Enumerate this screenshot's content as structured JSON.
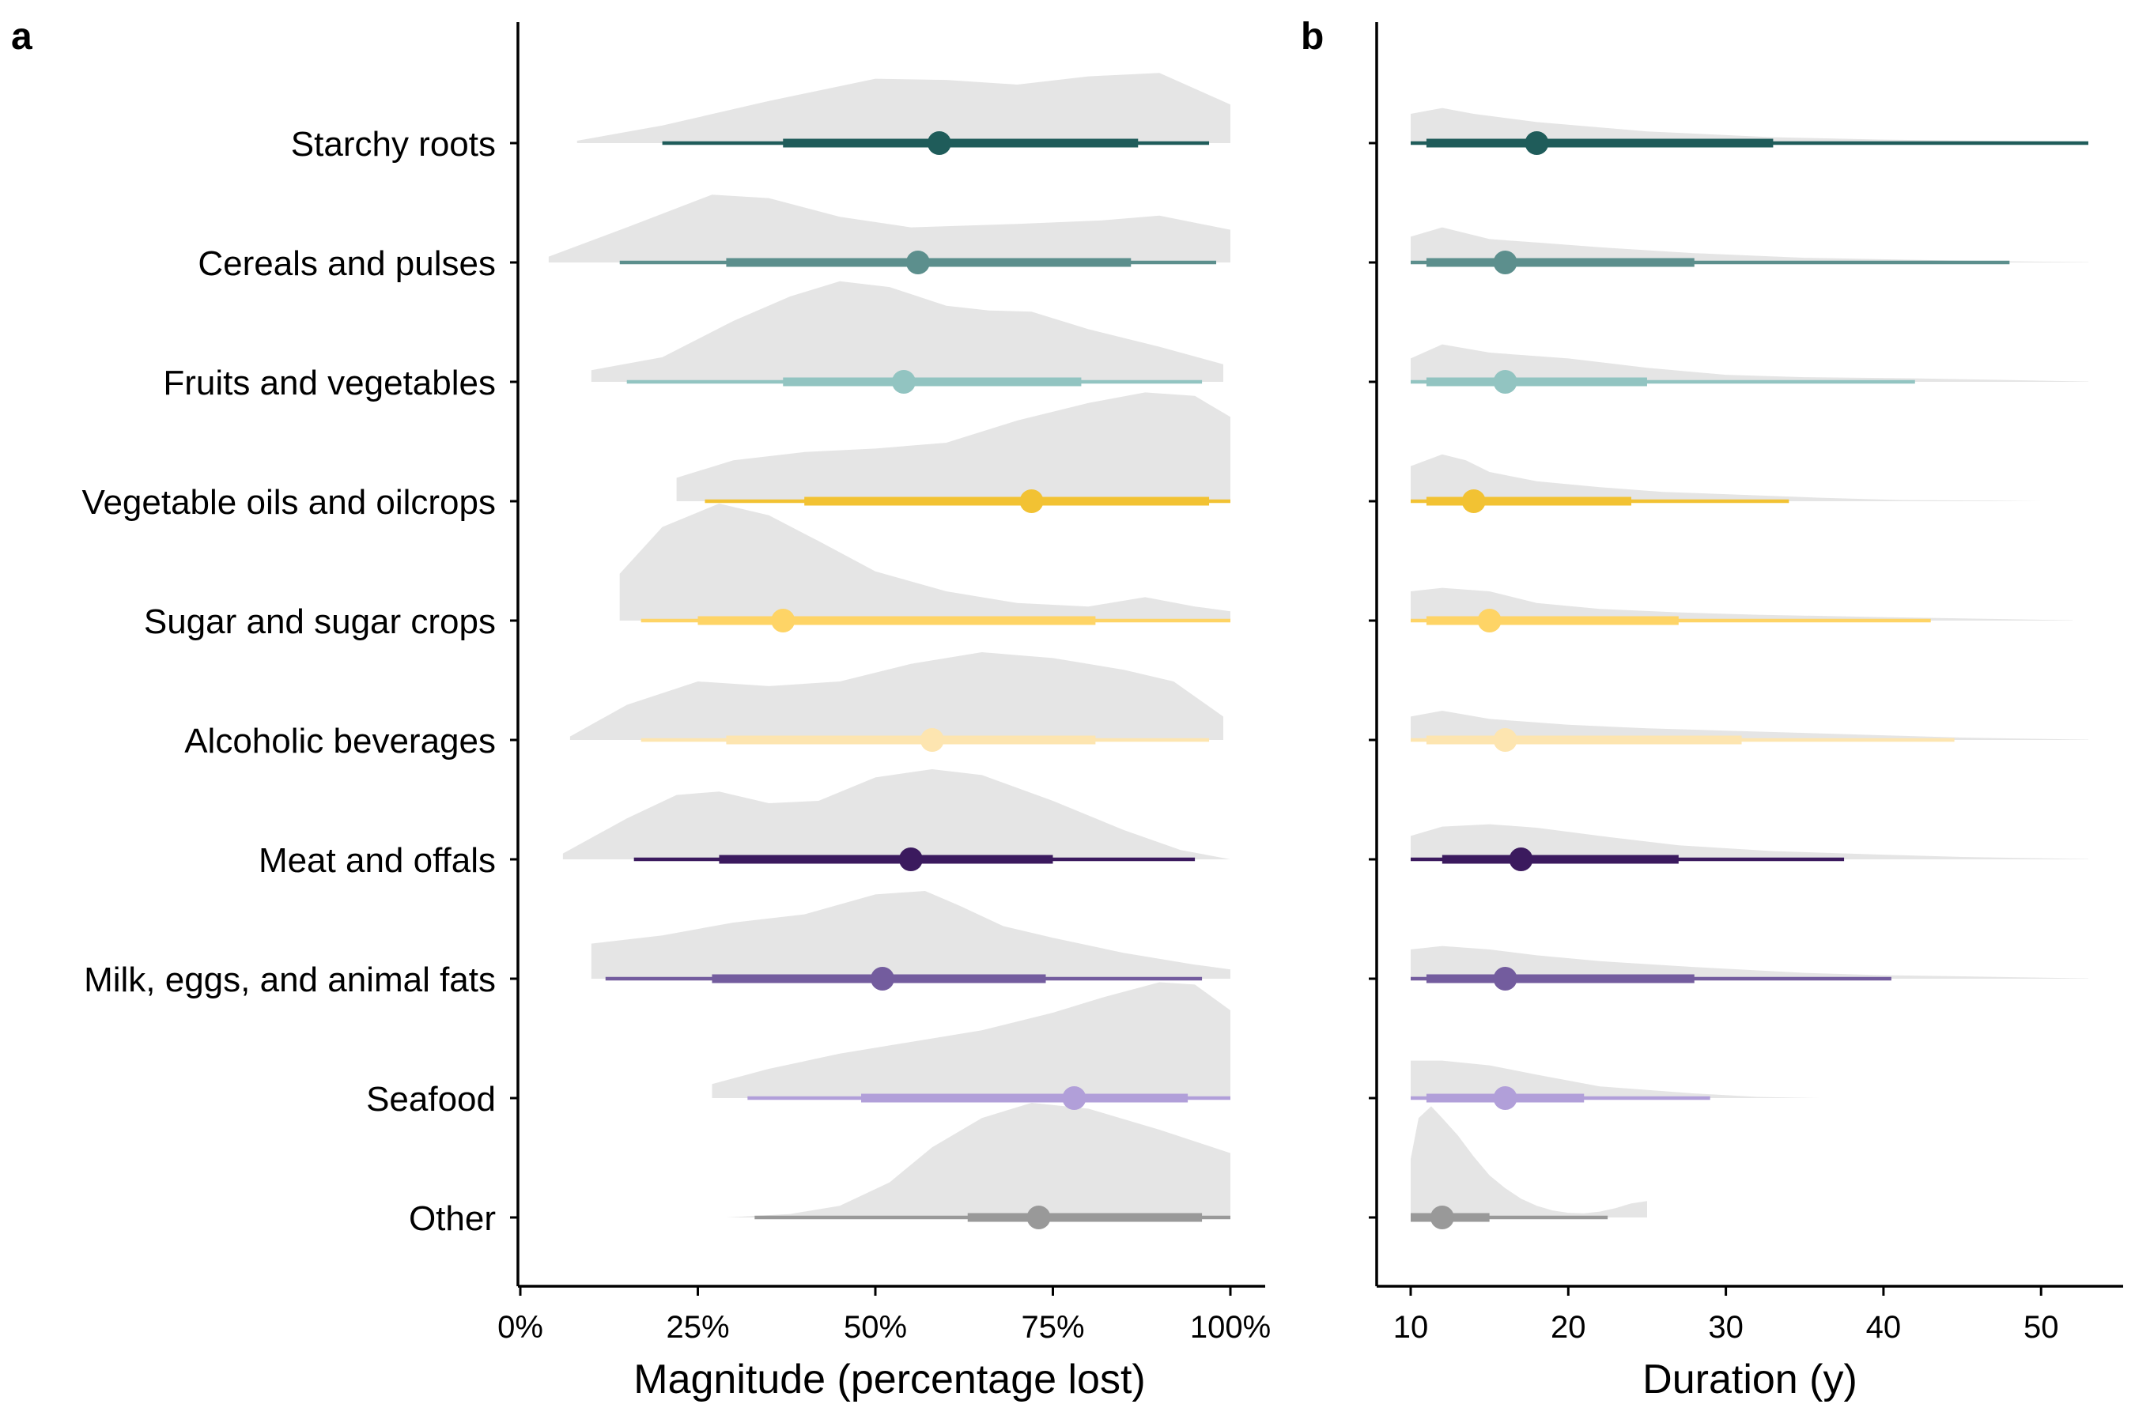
{
  "panels": [
    {
      "letter": "a",
      "xlabel": "Magnitude (percentage lost)",
      "tick_labels": [
        "0%",
        "25%",
        "50%",
        "75%",
        "100%"
      ]
    },
    {
      "letter": "b",
      "xlabel": "Duration (y)",
      "tick_labels": [
        "10",
        "20",
        "30",
        "40",
        "50"
      ]
    }
  ],
  "categories": [
    "Starchy roots",
    "Cereals and pulses",
    "Fruits and vegetables",
    "Vegetable oils and oilcrops",
    "Sugar and sugar crops",
    "Alcoholic beverages",
    "Meat and offals",
    "Milk, eggs, and animal fats",
    "Seafood",
    "Other"
  ],
  "colors": {
    "density_fill": "#e5e5e5",
    "series": [
      "#1f5c5a",
      "#5c8f8d",
      "#92c4c1",
      "#f2c233",
      "#fed466",
      "#fde5b0",
      "#3b1a5e",
      "#735c9e",
      "#b19fd9",
      "#999999"
    ]
  },
  "chart_data": [
    {
      "type": "halfeye",
      "panel": "a",
      "xlabel": "Magnitude (percentage lost)",
      "xlim": [
        0,
        100
      ],
      "xticks": [
        0,
        25,
        50,
        75,
        100
      ],
      "point": [
        59,
        56,
        54,
        72,
        37,
        58,
        55,
        51,
        78,
        73
      ],
      "interval_66": [
        [
          37,
          87
        ],
        [
          29,
          86
        ],
        [
          37,
          79
        ],
        [
          40,
          97
        ],
        [
          25,
          81
        ],
        [
          29,
          81
        ],
        [
          28,
          75
        ],
        [
          27,
          74
        ],
        [
          48,
          94
        ],
        [
          63,
          96
        ]
      ],
      "interval_95": [
        [
          20,
          97
        ],
        [
          14,
          98
        ],
        [
          15,
          96
        ],
        [
          26,
          100
        ],
        [
          17,
          100
        ],
        [
          17,
          97
        ],
        [
          16,
          95
        ],
        [
          12,
          96
        ],
        [
          32,
          100
        ],
        [
          33,
          100
        ]
      ],
      "density": [
        {
          "x": [
            8,
            20,
            35,
            50,
            60,
            70,
            80,
            90,
            100
          ],
          "d": [
            0.02,
            0.15,
            0.36,
            0.55,
            0.54,
            0.5,
            0.57,
            0.6,
            0.33
          ]
        },
        {
          "x": [
            4,
            15,
            27,
            35,
            45,
            55,
            70,
            82,
            90,
            100
          ],
          "d": [
            0.05,
            0.3,
            0.58,
            0.55,
            0.39,
            0.3,
            0.33,
            0.36,
            0.4,
            0.28
          ]
        },
        {
          "x": [
            10,
            20,
            30,
            38,
            45,
            52,
            60,
            66,
            72,
            80,
            90,
            99
          ],
          "d": [
            0.1,
            0.21,
            0.52,
            0.73,
            0.86,
            0.81,
            0.65,
            0.61,
            0.6,
            0.45,
            0.3,
            0.15
          ]
        },
        {
          "x": [
            22,
            30,
            40,
            50,
            60,
            70,
            80,
            88,
            95,
            100
          ],
          "d": [
            0.2,
            0.35,
            0.42,
            0.45,
            0.5,
            0.69,
            0.84,
            0.93,
            0.9,
            0.72
          ]
        },
        {
          "x": [
            14,
            20,
            28,
            35,
            42,
            50,
            60,
            70,
            80,
            88,
            95,
            100
          ],
          "d": [
            0.4,
            0.8,
            1,
            0.9,
            0.68,
            0.42,
            0.25,
            0.15,
            0.12,
            0.2,
            0.12,
            0.08
          ]
        },
        {
          "x": [
            7,
            15,
            25,
            35,
            45,
            55,
            65,
            75,
            85,
            92,
            99
          ],
          "d": [
            0.03,
            0.3,
            0.5,
            0.46,
            0.5,
            0.65,
            0.75,
            0.7,
            0.6,
            0.5,
            0.2
          ]
        },
        {
          "x": [
            6,
            15,
            22,
            28,
            35,
            42,
            50,
            58,
            65,
            75,
            85,
            93,
            100
          ],
          "d": [
            0.05,
            0.35,
            0.55,
            0.58,
            0.48,
            0.5,
            0.7,
            0.77,
            0.72,
            0.5,
            0.25,
            0.08,
            0
          ]
        },
        {
          "x": [
            10,
            20,
            30,
            40,
            50,
            57,
            62,
            68,
            75,
            85,
            95,
            100
          ],
          "d": [
            0.3,
            0.37,
            0.48,
            0.55,
            0.72,
            0.75,
            0.62,
            0.45,
            0.35,
            0.22,
            0.12,
            0.08
          ]
        },
        {
          "x": [
            27,
            35,
            45,
            55,
            65,
            75,
            82,
            90,
            95,
            100
          ],
          "d": [
            0.12,
            0.25,
            0.38,
            0.48,
            0.58,
            0.73,
            0.86,
            0.99,
            0.97,
            0.75
          ]
        },
        {
          "x": [
            29,
            38,
            45,
            52,
            58,
            65,
            72,
            80,
            90,
            100
          ],
          "d": [
            0,
            0.03,
            0.1,
            0.3,
            0.6,
            0.85,
            0.98,
            0.93,
            0.75,
            0.55
          ]
        }
      ]
    },
    {
      "type": "halfeye",
      "panel": "b",
      "xlabel": "Duration (y)",
      "xlim": [
        10,
        53
      ],
      "xticks": [
        10,
        20,
        30,
        40,
        50
      ],
      "point": [
        18,
        16,
        16,
        14,
        15,
        16,
        17,
        16,
        16,
        12
      ],
      "interval_66": [
        [
          11,
          33
        ],
        [
          11,
          28
        ],
        [
          11,
          25
        ],
        [
          11,
          24
        ],
        [
          11,
          27
        ],
        [
          11,
          31
        ],
        [
          12,
          27
        ],
        [
          11,
          28
        ],
        [
          11,
          21
        ],
        [
          10,
          15
        ]
      ],
      "interval_95": [
        [
          10,
          53
        ],
        [
          10,
          48
        ],
        [
          10,
          42
        ],
        [
          10,
          34
        ],
        [
          10,
          43
        ],
        [
          10,
          44.5
        ],
        [
          10,
          37.5
        ],
        [
          10,
          40.5
        ],
        [
          10,
          29
        ],
        [
          10,
          22.5
        ]
      ],
      "density": [
        {
          "x": [
            10,
            12,
            14,
            18,
            25,
            33,
            40,
            53
          ],
          "d": [
            0.25,
            0.3,
            0.25,
            0.18,
            0.1,
            0.05,
            0.03,
            0.01
          ]
        },
        {
          "x": [
            10,
            12,
            15,
            18,
            22,
            28,
            35,
            45,
            53
          ],
          "d": [
            0.22,
            0.3,
            0.2,
            0.17,
            0.13,
            0.08,
            0.04,
            0.015,
            0.003
          ]
        },
        {
          "x": [
            10,
            12,
            15,
            20,
            25,
            30,
            35,
            42,
            53
          ],
          "d": [
            0.2,
            0.32,
            0.25,
            0.2,
            0.12,
            0.06,
            0.04,
            0.03,
            0.003
          ]
        },
        {
          "x": [
            10,
            12,
            13.5,
            15,
            18,
            22,
            26,
            32,
            36,
            41,
            47,
            50
          ],
          "d": [
            0.3,
            0.4,
            0.35,
            0.25,
            0.17,
            0.12,
            0.08,
            0.05,
            0.03,
            0.01,
            0.005,
            0
          ]
        },
        {
          "x": [
            10,
            12,
            15,
            18,
            22,
            27,
            32,
            40,
            52
          ],
          "d": [
            0.25,
            0.28,
            0.25,
            0.15,
            0.1,
            0.07,
            0.05,
            0.03,
            0.003
          ]
        },
        {
          "x": [
            10,
            12,
            15,
            20,
            25,
            30,
            35,
            40,
            45,
            53
          ],
          "d": [
            0.2,
            0.25,
            0.18,
            0.13,
            0.1,
            0.08,
            0.06,
            0.04,
            0.02,
            0.003
          ]
        },
        {
          "x": [
            10,
            12,
            15,
            18,
            22,
            27,
            33,
            40,
            45,
            53
          ],
          "d": [
            0.2,
            0.28,
            0.3,
            0.27,
            0.2,
            0.12,
            0.07,
            0.04,
            0.02,
            0.003
          ]
        },
        {
          "x": [
            10,
            12,
            15,
            18,
            22,
            28,
            35,
            40,
            45,
            53
          ],
          "d": [
            0.25,
            0.28,
            0.25,
            0.2,
            0.15,
            0.1,
            0.05,
            0.03,
            0.02,
            0.003
          ]
        },
        {
          "x": [
            10,
            12,
            15,
            18,
            22,
            28,
            32,
            36
          ],
          "d": [
            0.32,
            0.32,
            0.28,
            0.2,
            0.1,
            0.04,
            0.01,
            0
          ]
        },
        {
          "x": [
            10,
            10.5,
            11.3,
            12,
            13,
            14,
            15,
            16,
            17,
            18,
            19,
            20,
            21,
            22,
            23,
            24,
            25
          ],
          "d": [
            0.5,
            0.85,
            0.95,
            0.85,
            0.7,
            0.52,
            0.36,
            0.25,
            0.16,
            0.1,
            0.06,
            0.04,
            0.035,
            0.05,
            0.08,
            0.12,
            0.14
          ]
        }
      ]
    }
  ]
}
